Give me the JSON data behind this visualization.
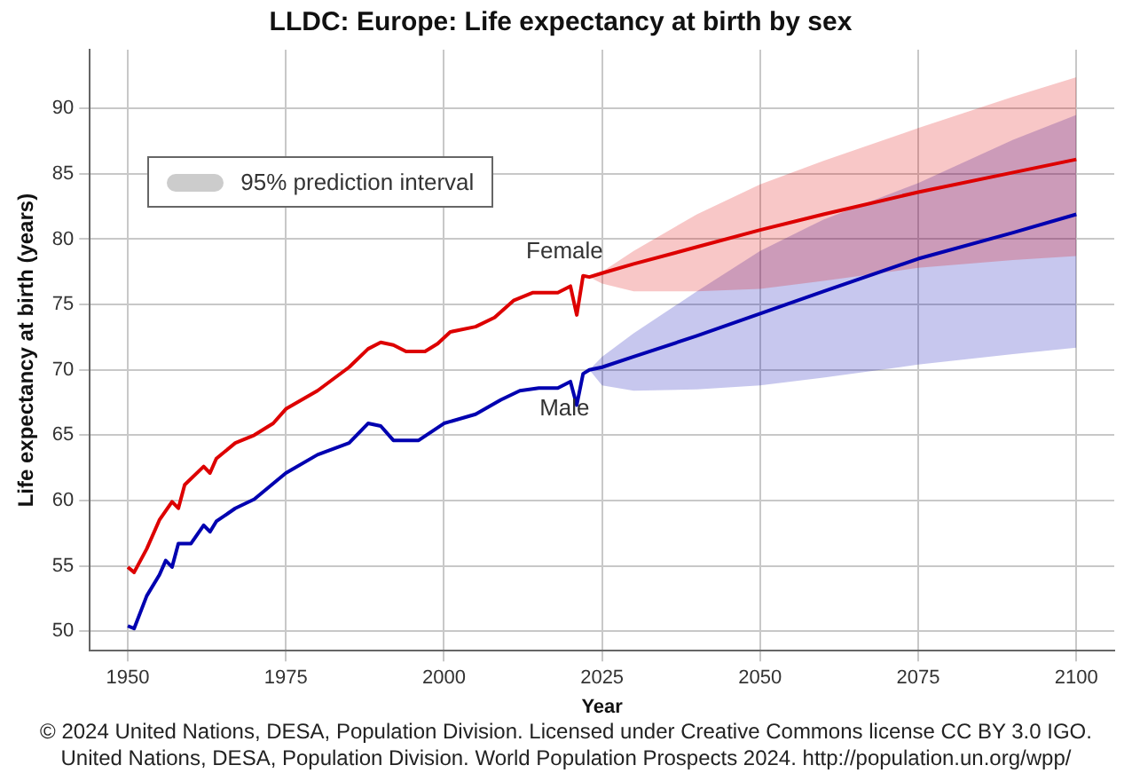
{
  "chart_data": {
    "type": "line",
    "title": "LLDC: Europe: Life expectancy at birth by sex",
    "xlabel": "Year",
    "ylabel": "Life expectancy at birth (years)",
    "legend_title": "95% prediction interval",
    "legend": "top left",
    "grid": true,
    "marker": "none",
    "xlim": [
      1944,
      2106
    ],
    "ylim": [
      48.5,
      94.5
    ],
    "xticks": [
      1950,
      1975,
      2000,
      2025,
      2050,
      2075,
      2100
    ],
    "yticks": [
      50,
      55,
      60,
      65,
      70,
      75,
      80,
      85,
      90
    ],
    "series": [
      {
        "name": "Female",
        "color": "#dd0000",
        "x": [
          1950,
          1951,
          1953,
          1955,
          1957,
          1958,
          1959,
          1962,
          1963,
          1964,
          1967,
          1970,
          1973,
          1975,
          1980,
          1985,
          1988,
          1990,
          1992,
          1994,
          1997,
          1999,
          2001,
          2005,
          2008,
          2011,
          2014,
          2018,
          2020,
          2021,
          2022,
          2023,
          2025,
          2030,
          2040,
          2050,
          2060,
          2075,
          2090,
          2100
        ],
        "values": [
          54.9,
          54.5,
          56.3,
          58.5,
          59.9,
          59.4,
          61.2,
          62.6,
          62.1,
          63.2,
          64.4,
          65.0,
          65.9,
          67.0,
          68.4,
          70.2,
          71.6,
          72.1,
          71.9,
          71.4,
          71.4,
          72.0,
          72.9,
          73.3,
          74.0,
          75.3,
          75.9,
          75.9,
          76.4,
          74.2,
          77.2,
          77.1,
          77.4,
          78.1,
          79.4,
          80.7,
          81.9,
          83.6,
          85.1,
          86.1
        ],
        "lower": [
          null,
          null,
          null,
          null,
          null,
          null,
          null,
          null,
          null,
          null,
          null,
          null,
          null,
          null,
          null,
          null,
          null,
          null,
          null,
          null,
          null,
          null,
          null,
          null,
          null,
          null,
          null,
          null,
          null,
          null,
          null,
          77.1,
          76.6,
          76.0,
          76.0,
          76.2,
          76.8,
          77.8,
          78.4,
          78.7
        ],
        "upper": [
          null,
          null,
          null,
          null,
          null,
          null,
          null,
          null,
          null,
          null,
          null,
          null,
          null,
          null,
          null,
          null,
          null,
          null,
          null,
          null,
          null,
          null,
          null,
          null,
          null,
          null,
          null,
          null,
          null,
          null,
          null,
          77.1,
          77.5,
          79.1,
          81.9,
          84.2,
          86.0,
          88.5,
          90.9,
          92.4
        ]
      },
      {
        "name": "Male",
        "color": "#0000b0",
        "x": [
          1950,
          1951,
          1953,
          1955,
          1956,
          1957,
          1958,
          1960,
          1962,
          1963,
          1964,
          1967,
          1970,
          1975,
          1980,
          1985,
          1988,
          1990,
          1992,
          1996,
          2000,
          2005,
          2009,
          2012,
          2015,
          2018,
          2020,
          2021,
          2022,
          2023,
          2025,
          2030,
          2040,
          2050,
          2060,
          2075,
          2090,
          2100
        ],
        "values": [
          50.4,
          50.2,
          52.7,
          54.3,
          55.4,
          54.9,
          56.7,
          56.7,
          58.1,
          57.6,
          58.4,
          59.4,
          60.1,
          62.1,
          63.5,
          64.4,
          65.9,
          65.7,
          64.6,
          64.6,
          65.9,
          66.6,
          67.7,
          68.4,
          68.6,
          68.6,
          69.1,
          67.3,
          69.7,
          70.0,
          70.2,
          71.0,
          72.6,
          74.3,
          76.0,
          78.5,
          80.5,
          81.9
        ],
        "lower": [
          null,
          null,
          null,
          null,
          null,
          null,
          null,
          null,
          null,
          null,
          null,
          null,
          null,
          null,
          null,
          null,
          null,
          null,
          null,
          null,
          null,
          null,
          null,
          null,
          null,
          null,
          null,
          null,
          null,
          70.0,
          68.8,
          68.4,
          68.5,
          68.8,
          69.4,
          70.4,
          71.2,
          71.7
        ],
        "upper": [
          null,
          null,
          null,
          null,
          null,
          null,
          null,
          null,
          null,
          null,
          null,
          null,
          null,
          null,
          null,
          null,
          null,
          null,
          null,
          null,
          null,
          null,
          null,
          null,
          null,
          null,
          null,
          null,
          null,
          70.0,
          71.0,
          72.8,
          76.0,
          79.1,
          81.5,
          84.3,
          87.6,
          89.5
        ]
      }
    ],
    "annotations": [
      "© 2024 United Nations, DESA, Population Division. Licensed under Creative Commons license CC BY 3.0 IGO.",
      "United Nations, DESA, Population Division. World Population Prospects 2024. http://population.un.org/wpp/"
    ]
  }
}
